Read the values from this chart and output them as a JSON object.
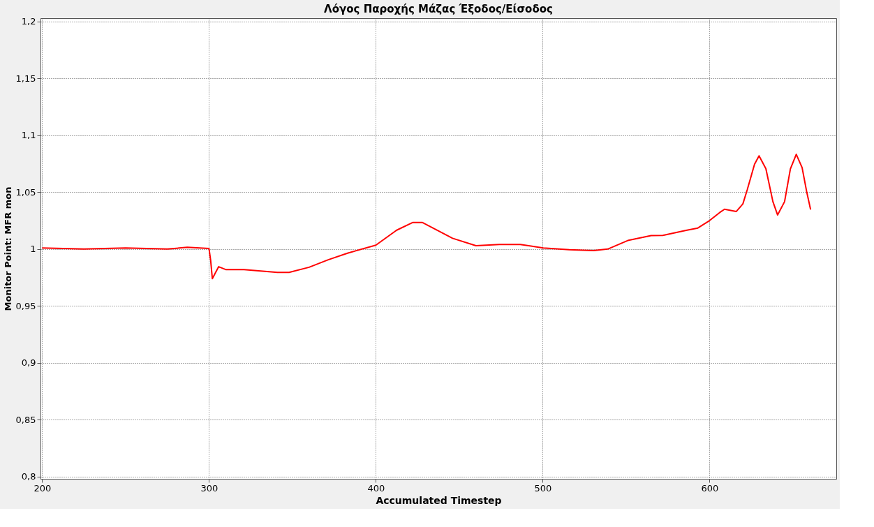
{
  "chart_data": {
    "type": "line",
    "title": "Λόγος Παροχής Μάζας Έξοδος/Είσοδος",
    "xlabel": "Accumulated Timestep",
    "ylabel": "Monitor Point: MFR mon",
    "xlim": [
      199,
      676
    ],
    "xticks": [
      200,
      300,
      400,
      500,
      600
    ],
    "ylim": [
      0.798,
      1.203
    ],
    "yticks": [
      {
        "value": 0.8,
        "label": "0,8"
      },
      {
        "value": 0.85,
        "label": "0,85"
      },
      {
        "value": 0.9,
        "label": "0,9"
      },
      {
        "value": 0.95,
        "label": "0,95"
      },
      {
        "value": 1,
        "label": "1"
      },
      {
        "value": 1.05,
        "label": "1,05"
      },
      {
        "value": 1.1,
        "label": "1,1"
      },
      {
        "value": 1.15,
        "label": "1,15"
      },
      {
        "value": 1.2,
        "label": "1,2"
      }
    ],
    "grid": true,
    "line_style": "solid",
    "marker": "none",
    "series": [
      {
        "color": "#ff0000",
        "x": [
          200,
          225,
          250,
          275,
          287,
          300,
          301,
          302,
          305.8,
          310,
          321,
          341,
          348,
          360,
          371.5,
          383,
          400,
          412.5,
          422,
          428,
          446,
          460,
          474,
          486.6,
          500.4,
          516,
          530.5,
          539,
          551,
          565,
          572,
          586,
          593,
          600,
          606,
          609,
          616,
          620,
          622.6,
          627,
          629.7,
          633.8,
          638,
          640.8,
          645,
          648.5,
          652,
          655.5,
          658.3,
          660.6
        ],
        "values": [
          1.001,
          1.0,
          1.001,
          1.0,
          1.0015,
          1.0005,
          0.99,
          0.974,
          0.9845,
          0.982,
          0.982,
          0.9795,
          0.9795,
          0.984,
          0.9906,
          0.9964,
          1.0034,
          1.0166,
          1.0233,
          1.0233,
          1.0095,
          1.003,
          1.004,
          1.004,
          1.001,
          0.9994,
          0.9986,
          1.0,
          1.0075,
          1.0119,
          1.012,
          1.0165,
          1.0185,
          1.025,
          1.032,
          1.035,
          1.033,
          1.0397,
          1.052,
          1.0746,
          1.082,
          1.0706,
          1.0417,
          1.03,
          1.0417,
          1.0706,
          1.0833,
          1.0716,
          1.05,
          1.0347
        ]
      }
    ]
  }
}
